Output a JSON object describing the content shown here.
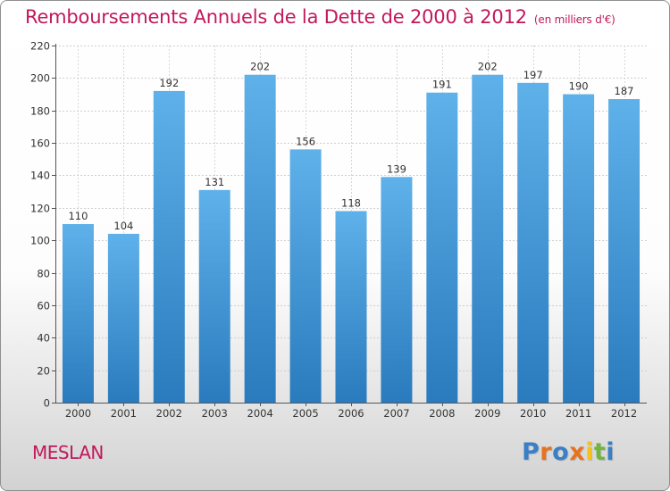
{
  "header": {
    "title": "Remboursements Annuels de la Dette de 2000 à 2012",
    "subtitle": "(en milliers d'€)"
  },
  "footer": {
    "commune": "MESLAN",
    "logo_text": "Proxiti"
  },
  "colors": {
    "title": "#c2185b",
    "bar_top": "#5fb1ea",
    "bar_bottom": "#2a7bbd",
    "logo": [
      "#3b7fc4",
      "#e8731e",
      "#3b7fc4",
      "#e8731e",
      "#f4c21a",
      "#71b540",
      "#3b7fc4"
    ]
  },
  "chart_data": {
    "type": "bar",
    "categories": [
      "2000",
      "2001",
      "2002",
      "2003",
      "2004",
      "2005",
      "2006",
      "2007",
      "2008",
      "2009",
      "2010",
      "2011",
      "2012"
    ],
    "values": [
      110,
      104,
      192,
      131,
      202,
      156,
      118,
      139,
      191,
      202,
      197,
      190,
      187
    ],
    "title": "Remboursements Annuels de la Dette de 2000 à 2012",
    "subtitle": "(en milliers d'€)",
    "xlabel": "",
    "ylabel": "",
    "ylim": [
      0,
      220
    ],
    "yticks": [
      0,
      20,
      40,
      60,
      80,
      100,
      120,
      140,
      160,
      180,
      200,
      220
    ],
    "grid": true,
    "legend": "none"
  }
}
